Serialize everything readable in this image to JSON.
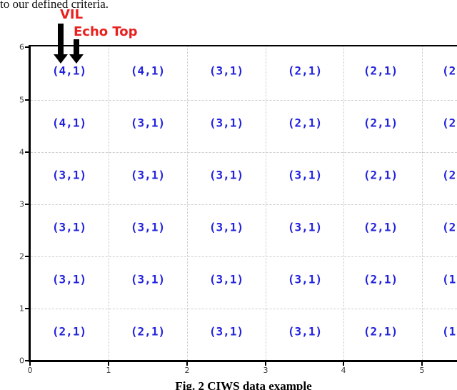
{
  "paper": {
    "body_text": "to our defined criteria.",
    "caption": "Fig. 2 CIWS data example"
  },
  "annotations": {
    "vil": "VIL",
    "echo_top": "Echo Top",
    "label_color": "#e8211f",
    "arrow_color": "#000000"
  },
  "chart_data": {
    "type": "heatmap",
    "title": "",
    "xlabel": "",
    "ylabel": "",
    "x_ticks": [
      "0",
      "1",
      "2",
      "3",
      "4",
      "5"
    ],
    "y_ticks": [
      "6",
      "5",
      "4",
      "3",
      "2",
      "1",
      "0"
    ],
    "xlim": [
      0,
      5.45
    ],
    "ylim": [
      0,
      6
    ],
    "grid": true,
    "cell_text_color": "#2222dd",
    "rows": [
      [
        "(4,1)",
        "(4,1)",
        "(3,1)",
        "(2,1)",
        "(2,1)",
        "(2"
      ],
      [
        "(4,1)",
        "(3,1)",
        "(3,1)",
        "(2,1)",
        "(2,1)",
        "(2"
      ],
      [
        "(3,1)",
        "(3,1)",
        "(3,1)",
        "(3,1)",
        "(2,1)",
        "(2"
      ],
      [
        "(3,1)",
        "(3,1)",
        "(3,1)",
        "(3,1)",
        "(2,1)",
        "(2"
      ],
      [
        "(3,1)",
        "(3,1)",
        "(3,1)",
        "(3,1)",
        "(2,1)",
        "(1"
      ],
      [
        "(2,1)",
        "(2,1)",
        "(3,1)",
        "(3,1)",
        "(2,1)",
        "(1"
      ]
    ]
  }
}
